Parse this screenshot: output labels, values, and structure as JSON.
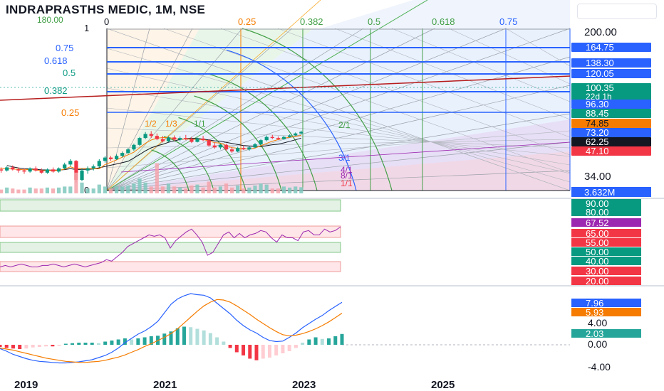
{
  "title": "INDRAPRASTHS MEDIC, 1M, NSE",
  "colors": {
    "blue": "#2962ff",
    "green": "#089981",
    "orange": "#f57c00",
    "red": "#f23645",
    "darkred": "#b71c1c",
    "purple": "#9c27b0",
    "black": "#131722",
    "teal": "#26a69a"
  },
  "chart_data": [
    {
      "type": "candlestick",
      "panel": "price",
      "ylabel_ticks": [
        "200.00",
        "34.00"
      ],
      "x_ticks": [
        "2019",
        "2021",
        "2023",
        "2025"
      ],
      "fib_ratios_left": [
        {
          "label": "1",
          "color": "#131722"
        },
        {
          "label": "0.75",
          "color": "#2962ff"
        },
        {
          "label": "0.618",
          "color": "#2962ff"
        },
        {
          "label": "0.5",
          "color": "#089981"
        },
        {
          "label": "0.382",
          "color": "#089981"
        },
        {
          "label": "0.25",
          "color": "#f57c00"
        },
        {
          "label": "0",
          "color": "#131722"
        }
      ],
      "fib_ratios_top": [
        "0",
        "0.25",
        "0.382",
        "0.5",
        "0.618",
        "0.75"
      ],
      "gann_labels": [
        "180.00",
        "1/1",
        "2/1",
        "3/1",
        "4/1",
        "8/1",
        "1/1",
        "1/2",
        "1/3"
      ],
      "price_badges": [
        {
          "label": "164.75",
          "color": "#2962ff",
          "text_color": "#ffffff"
        },
        {
          "label": "138.30",
          "color": "#2962ff",
          "text_color": "#ffffff"
        },
        {
          "label": "120.05",
          "color": "#2962ff",
          "text_color": "#ffffff"
        },
        {
          "label": "100.35",
          "sub": "22d 1h",
          "color": "#089981",
          "text_color": "#ffffff"
        },
        {
          "label": "96.30",
          "color": "#2962ff",
          "text_color": "#ffffff"
        },
        {
          "label": "88.45",
          "color": "#089981",
          "text_color": "#ffffff"
        },
        {
          "label": "74.85",
          "color": "#f57c00",
          "text_color": "#131722"
        },
        {
          "label": "73.20",
          "color": "#2962ff",
          "text_color": "#ffffff"
        },
        {
          "label": "62.25",
          "color": "#131722",
          "text_color": "#ffffff"
        },
        {
          "label": "47.10",
          "color": "#f23645",
          "text_color": "#ffffff"
        }
      ],
      "volume_badge": "3.632M",
      "candles": [
        {
          "d": "2018-06",
          "o": 63,
          "h": 66,
          "l": 57,
          "c": 59
        },
        {
          "d": "2018-07",
          "o": 59,
          "h": 62,
          "l": 53,
          "c": 55
        },
        {
          "d": "2018-08",
          "o": 55,
          "h": 57,
          "l": 48,
          "c": 50
        },
        {
          "d": "2018-09",
          "o": 50,
          "h": 53,
          "l": 46,
          "c": 48
        },
        {
          "d": "2018-10",
          "o": 48,
          "h": 51,
          "l": 45,
          "c": 49
        },
        {
          "d": "2018-11",
          "o": 49,
          "h": 52,
          "l": 46,
          "c": 47
        },
        {
          "d": "2018-12",
          "o": 47,
          "h": 50,
          "l": 44,
          "c": 46
        },
        {
          "d": "2019-01",
          "o": 46,
          "h": 48,
          "l": 43,
          "c": 45
        },
        {
          "d": "2019-02",
          "o": 45,
          "h": 47,
          "l": 42,
          "c": 44
        },
        {
          "d": "2019-03",
          "o": 44,
          "h": 48,
          "l": 43,
          "c": 47
        },
        {
          "d": "2019-04",
          "o": 47,
          "h": 49,
          "l": 44,
          "c": 45
        },
        {
          "d": "2019-05",
          "o": 45,
          "h": 47,
          "l": 42,
          "c": 44
        },
        {
          "d": "2019-06",
          "o": 44,
          "h": 46,
          "l": 41,
          "c": 43
        },
        {
          "d": "2019-07",
          "o": 43,
          "h": 47,
          "l": 42,
          "c": 46
        },
        {
          "d": "2019-08",
          "o": 46,
          "h": 48,
          "l": 43,
          "c": 44
        },
        {
          "d": "2019-09",
          "o": 44,
          "h": 46,
          "l": 41,
          "c": 42
        },
        {
          "d": "2019-10",
          "o": 42,
          "h": 46,
          "l": 41,
          "c": 45
        },
        {
          "d": "2019-11",
          "o": 45,
          "h": 47,
          "l": 42,
          "c": 43
        },
        {
          "d": "2019-12",
          "o": 43,
          "h": 47,
          "l": 42,
          "c": 46
        },
        {
          "d": "2020-01",
          "o": 46,
          "h": 52,
          "l": 45,
          "c": 50
        },
        {
          "d": "2020-02",
          "o": 50,
          "h": 56,
          "l": 48,
          "c": 54
        },
        {
          "d": "2020-03",
          "o": 54,
          "h": 55,
          "l": 34,
          "c": 36
        },
        {
          "d": "2020-04",
          "o": 36,
          "h": 46,
          "l": 35,
          "c": 44
        },
        {
          "d": "2020-05",
          "o": 44,
          "h": 48,
          "l": 41,
          "c": 46
        },
        {
          "d": "2020-06",
          "o": 46,
          "h": 50,
          "l": 44,
          "c": 48
        },
        {
          "d": "2020-07",
          "o": 48,
          "h": 56,
          "l": 47,
          "c": 54
        },
        {
          "d": "2020-08",
          "o": 54,
          "h": 60,
          "l": 52,
          "c": 58
        },
        {
          "d": "2020-09",
          "o": 58,
          "h": 60,
          "l": 54,
          "c": 56
        },
        {
          "d": "2020-10",
          "o": 56,
          "h": 62,
          "l": 55,
          "c": 60
        },
        {
          "d": "2020-11",
          "o": 60,
          "h": 66,
          "l": 58,
          "c": 64
        },
        {
          "d": "2020-12",
          "o": 64,
          "h": 71,
          "l": 62,
          "c": 69
        },
        {
          "d": "2021-01",
          "o": 69,
          "h": 78,
          "l": 67,
          "c": 76
        },
        {
          "d": "2021-02",
          "o": 76,
          "h": 90,
          "l": 74,
          "c": 88
        },
        {
          "d": "2021-03",
          "o": 88,
          "h": 100,
          "l": 86,
          "c": 96
        },
        {
          "d": "2021-04",
          "o": 96,
          "h": 102,
          "l": 88,
          "c": 92
        },
        {
          "d": "2021-05",
          "o": 92,
          "h": 97,
          "l": 84,
          "c": 86
        },
        {
          "d": "2021-06",
          "o": 86,
          "h": 92,
          "l": 80,
          "c": 82
        },
        {
          "d": "2021-07",
          "o": 82,
          "h": 91,
          "l": 81,
          "c": 89
        },
        {
          "d": "2021-08",
          "o": 89,
          "h": 93,
          "l": 83,
          "c": 85
        },
        {
          "d": "2021-09",
          "o": 85,
          "h": 91,
          "l": 82,
          "c": 88
        },
        {
          "d": "2021-10",
          "o": 88,
          "h": 94,
          "l": 84,
          "c": 86
        },
        {
          "d": "2021-11",
          "o": 86,
          "h": 90,
          "l": 79,
          "c": 81
        },
        {
          "d": "2021-12",
          "o": 81,
          "h": 89,
          "l": 80,
          "c": 87
        },
        {
          "d": "2022-01",
          "o": 87,
          "h": 92,
          "l": 82,
          "c": 84
        },
        {
          "d": "2022-02",
          "o": 84,
          "h": 86,
          "l": 73,
          "c": 75
        },
        {
          "d": "2022-03",
          "o": 75,
          "h": 80,
          "l": 70,
          "c": 72
        },
        {
          "d": "2022-04",
          "o": 72,
          "h": 78,
          "l": 69,
          "c": 76
        },
        {
          "d": "2022-05",
          "o": 76,
          "h": 78,
          "l": 67,
          "c": 69
        },
        {
          "d": "2022-06",
          "o": 69,
          "h": 72,
          "l": 64,
          "c": 66
        },
        {
          "d": "2022-07",
          "o": 66,
          "h": 73,
          "l": 65,
          "c": 71
        },
        {
          "d": "2022-08",
          "o": 71,
          "h": 75,
          "l": 68,
          "c": 69
        },
        {
          "d": "2022-09",
          "o": 69,
          "h": 74,
          "l": 67,
          "c": 72
        },
        {
          "d": "2022-10",
          "o": 72,
          "h": 79,
          "l": 71,
          "c": 77
        },
        {
          "d": "2022-11",
          "o": 77,
          "h": 86,
          "l": 76,
          "c": 84
        },
        {
          "d": "2022-12",
          "o": 84,
          "h": 93,
          "l": 82,
          "c": 90
        },
        {
          "d": "2023-01",
          "o": 90,
          "h": 94,
          "l": 86,
          "c": 88
        },
        {
          "d": "2023-02",
          "o": 88,
          "h": 91,
          "l": 84,
          "c": 86
        },
        {
          "d": "2023-03",
          "o": 86,
          "h": 92,
          "l": 85,
          "c": 90
        },
        {
          "d": "2023-04",
          "o": 90,
          "h": 95,
          "l": 89,
          "c": 93
        },
        {
          "d": "2023-05",
          "o": 93,
          "h": 99,
          "l": 92,
          "c": 97
        },
        {
          "d": "2023-06",
          "o": 97,
          "h": 103,
          "l": 95,
          "c": 100.35
        }
      ]
    },
    {
      "type": "line",
      "panel": "rsi",
      "level_badges": [
        {
          "label": "90.00",
          "color": "#089981"
        },
        {
          "label": "80.00",
          "color": "#089981"
        },
        {
          "label": "67.52",
          "color": "#9c27b0"
        },
        {
          "label": "65.00",
          "color": "#f23645"
        },
        {
          "label": "55.00",
          "color": "#f23645"
        },
        {
          "label": "50.00",
          "color": "#089981"
        },
        {
          "label": "40.00",
          "color": "#089981"
        },
        {
          "label": "30.00",
          "color": "#f23645"
        },
        {
          "label": "20.00",
          "color": "#f23645"
        }
      ],
      "values": [
        40,
        41,
        40,
        41,
        42,
        41,
        40,
        40,
        41,
        41,
        42,
        41,
        40,
        41,
        42,
        41,
        40,
        41,
        42,
        43,
        45,
        44,
        47,
        50,
        54,
        56,
        58,
        60,
        62,
        61,
        62,
        60,
        53,
        58,
        61,
        64,
        66,
        62,
        57,
        48,
        50,
        56,
        62,
        64,
        60,
        63,
        60,
        62,
        63,
        65,
        64,
        60,
        57,
        62,
        60,
        60,
        58,
        64,
        65,
        62,
        62,
        66,
        64,
        65,
        67.52
      ]
    },
    {
      "type": "line",
      "panel": "macd",
      "y_ticks": [
        "4.00",
        "0.00",
        "-4.00"
      ],
      "level_badges": [
        {
          "label": "7.96",
          "color": "#2962ff"
        },
        {
          "label": "5.93",
          "color": "#f57c00"
        },
        {
          "label": "2.03",
          "color": "#26a69a"
        }
      ],
      "series": [
        {
          "name": "MACD",
          "color": "#2962ff",
          "values": [
            -0.7,
            -1.2,
            -1.8,
            -2.2,
            -2.6,
            -2.9,
            -3.1,
            -3.2,
            -3.3,
            -3.4,
            -3.4,
            -3.3,
            -3.2,
            -3.0,
            -2.8,
            -2.4,
            -2.0,
            -1.4,
            -0.6,
            0.4,
            1.2,
            2.0,
            2.6,
            3.4,
            4.4,
            6.0,
            7.6,
            8.6,
            9.2,
            9.6,
            9.4,
            9.3,
            8.8,
            7.8,
            6.8,
            5.8,
            4.6,
            3.6,
            2.8,
            2.2,
            1.4,
            0.8,
            0.6,
            0.7,
            1.4,
            2.2,
            3.2,
            4.0,
            4.8,
            5.5,
            6.4,
            7.2,
            7.96
          ]
        },
        {
          "name": "Signal",
          "color": "#f57c00",
          "values": [
            -0.6,
            -0.8,
            -1.0,
            -1.3,
            -1.6,
            -1.9,
            -2.2,
            -2.5,
            -2.7,
            -2.9,
            -3.1,
            -3.2,
            -3.3,
            -3.3,
            -3.2,
            -3.1,
            -2.9,
            -2.6,
            -2.3,
            -1.9,
            -1.4,
            -0.9,
            -0.3,
            0.2,
            0.8,
            1.4,
            2.1,
            3.0,
            4.1,
            5.2,
            6.3,
            7.3,
            8.0,
            8.5,
            8.4,
            8.0,
            7.3,
            6.5,
            5.7,
            4.8,
            4.0,
            3.2,
            2.5,
            1.9,
            1.7,
            1.8,
            2.1,
            2.5,
            3.0,
            3.6,
            4.3,
            5.1,
            5.93
          ]
        }
      ],
      "histogram": [
        -0.4,
        -0.6,
        -0.7,
        -0.8,
        -0.7,
        -0.5,
        -0.4,
        -0.3,
        -0.3,
        -0.2,
        0.2,
        0.3,
        0.4,
        0.4,
        0.4,
        0.3,
        0.6,
        0.8,
        1.0,
        1.2,
        1.0,
        1.2,
        1.4,
        1.6,
        1.7,
        2.1,
        2.5,
        3.1,
        3.4,
        3.3,
        3.0,
        2.7,
        2.2,
        1.4,
        0.6,
        -0.6,
        -1.4,
        -2.0,
        -2.6,
        -2.9,
        -2.6,
        -2.4,
        -2.0,
        -1.6,
        -1.2,
        -0.6,
        0.4,
        1.0,
        1.4,
        1.1,
        1.2,
        1.6,
        2.03
      ]
    }
  ]
}
